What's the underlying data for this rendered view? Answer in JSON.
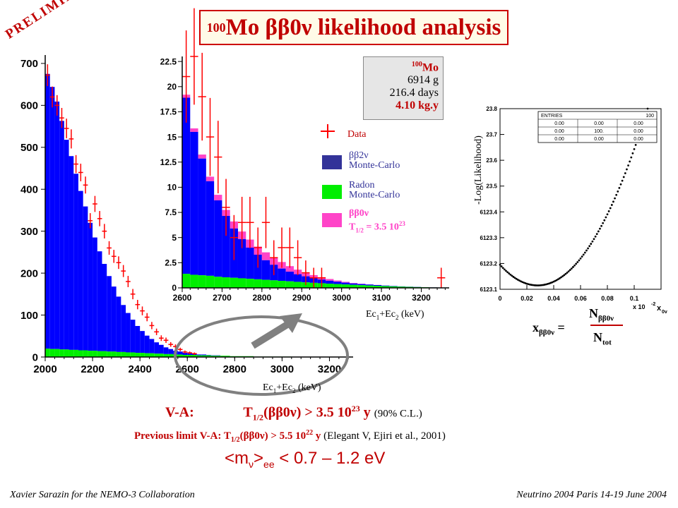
{
  "slide": {
    "title_sup": "100",
    "title_main": "Mo  ββ0ν likelihood analysis",
    "preliminary": "PRELIMINARY",
    "info": {
      "isotope_sup": "100",
      "isotope": "Mo",
      "mass": "6914 g",
      "days": "216.4 days",
      "exposure": "4.10 kg.y"
    },
    "legend": {
      "data": "Data",
      "bb2v_a": "ββ2ν",
      "bb2v_b": "Monte-Carlo",
      "radon_a": "Radon",
      "radon_b": "Monte-Carlo",
      "bb0v_a": "ββ0ν",
      "bb0v_b": "T",
      "bb0v_sub": "1/2",
      "bb0v_c": "= 3.5 10",
      "bb0v_sup": "23"
    },
    "main_xlabel_a": "Ec",
    "main_xlabel_sub1": "1",
    "main_xlabel_b": "+Ec",
    "main_xlabel_sub2": "2",
    "main_xlabel_c": " (keV)",
    "inset_xlabel": "Ec1+Ec2 (keV)",
    "likelihood_ylabel": "-Log(Likelihood)",
    "likelihood_xscale": "x 10",
    "likelihood_xscale_sup": "-2",
    "likelihood_xaxis_name": "x",
    "likelihood_xaxis_sub": "0v",
    "stats_box": {
      "header": "ENTRIES",
      "header_val": "100",
      "rows": [
        [
          "0.00",
          "0.00",
          "0.00"
        ],
        [
          "0.00",
          "100.",
          "0.00"
        ],
        [
          "0.00",
          "0.00",
          "0.00"
        ]
      ]
    },
    "eq_x": "x",
    "eq_x_sub": "ββ0ν",
    "eq_eq": " =",
    "eq_num": "N",
    "eq_num_sub": "ββ0ν",
    "eq_den": "N",
    "eq_den_sub": "tot",
    "result_label": "V-A:",
    "result_t": "T",
    "result_t_sub": "1/2",
    "result_expr": "(ββ0ν) >  3.5 10",
    "result_sup": "23",
    "result_unit": " y",
    "result_note": "(90% C.L.)",
    "prev_label": "Previous limit V-A:",
    "prev_t": "T",
    "prev_t_sub": "1/2",
    "prev_expr": "(ββ0ν) > 5.5 10",
    "prev_sup": "22",
    "prev_unit": " y",
    "prev_note": "(Elegant V, Ejiri et al., 2001)",
    "mass_a": "<m",
    "mass_sub1": "ν",
    "mass_b": ">",
    "mass_sub2": "ee",
    "mass_c": " < 0.7 – 1.2 eV",
    "footer_left": "Xavier Sarazin for the NEMO-3 Collaboration",
    "footer_right": "Neutrino 2004 Paris 14-19 June 2004"
  },
  "colors": {
    "bb2v": "#0000ff",
    "radon": "#00ee00",
    "bb0v": "#ff44c8",
    "data": "#ff0000",
    "accent": "#c00000"
  },
  "chart_data": [
    {
      "type": "bar",
      "name": "main",
      "x_tick_labels": [
        "2000",
        "2200",
        "2400",
        "2600",
        "2800",
        "3000",
        "3200"
      ],
      "y_tick_labels": [
        "0",
        "100",
        "200",
        "300",
        "400",
        "500",
        "600",
        "700"
      ],
      "xlim": [
        2000,
        3300
      ],
      "ylim": [
        0,
        720
      ],
      "bin_width": 20,
      "bb2v": [
        655,
        625,
        590,
        545,
        500,
        462,
        420,
        380,
        343,
        305,
        270,
        238,
        208,
        180,
        155,
        132,
        112,
        94,
        78,
        64,
        52,
        42,
        34,
        27,
        21,
        16,
        12,
        9,
        7,
        5,
        4,
        3,
        2,
        2,
        1,
        1,
        1,
        0,
        0,
        0,
        0,
        0,
        0,
        0,
        0,
        0,
        0,
        0,
        0,
        0,
        0,
        0,
        0,
        0,
        0,
        0,
        0,
        0,
        0,
        0,
        0,
        0,
        0,
        0,
        0
      ],
      "radon": [
        20,
        19,
        19,
        18,
        18,
        17,
        17,
        16,
        16,
        15,
        15,
        14,
        14,
        13,
        13,
        12,
        12,
        11,
        11,
        10,
        10,
        9,
        9,
        8,
        8,
        7,
        7,
        6,
        6,
        5,
        5,
        5,
        4,
        4,
        4,
        3,
        3,
        3,
        3,
        2,
        2,
        2,
        2,
        2,
        1,
        1,
        1,
        1,
        1,
        1,
        1,
        1,
        0,
        0,
        0,
        0,
        0,
        0,
        0,
        0,
        0,
        0,
        0,
        0,
        0
      ],
      "data_x": [
        2010,
        2030,
        2050,
        2070,
        2090,
        2110,
        2130,
        2150,
        2170,
        2190,
        2210,
        2230,
        2250,
        2270,
        2290,
        2310,
        2330,
        2350,
        2370,
        2390,
        2410,
        2430,
        2450,
        2470,
        2490,
        2510,
        2530,
        2550,
        2570,
        2590,
        2610,
        2630
      ],
      "data_y": [
        672,
        620,
        600,
        570,
        545,
        520,
        460,
        440,
        410,
        325,
        365,
        330,
        300,
        260,
        240,
        225,
        205,
        180,
        150,
        125,
        110,
        95,
        75,
        60,
        45,
        40,
        30,
        25,
        18,
        12,
        10,
        8
      ]
    },
    {
      "type": "bar",
      "name": "inset",
      "x_tick_labels": [
        "2600",
        "2700",
        "2800",
        "2900",
        "3000",
        "3100",
        "3200"
      ],
      "y_tick_labels": [
        "0",
        "2.5",
        "5",
        "7.5",
        "10",
        "12.5",
        "15",
        "17.5",
        "20",
        "22.5"
      ],
      "xlim": [
        2600,
        3270
      ],
      "ylim": [
        0,
        23
      ],
      "bin_width": 20,
      "bb2v": [
        17.5,
        14.2,
        11.6,
        9.4,
        7.6,
        6.1,
        4.9,
        3.9,
        3.1,
        2.45,
        1.95,
        1.55,
        1.22,
        0.96,
        0.76,
        0.6,
        0.47,
        0.37,
        0.29,
        0.23,
        0.18,
        0.14,
        0.11,
        0.09,
        0.07,
        0.05,
        0.04,
        0.03,
        0.02,
        0.02,
        0.01,
        0.01,
        0.01,
        0.0
      ],
      "radon": [
        1.4,
        1.3,
        1.25,
        1.2,
        1.1,
        1.05,
        1.0,
        0.95,
        0.9,
        0.85,
        0.8,
        0.75,
        0.7,
        0.65,
        0.6,
        0.55,
        0.5,
        0.46,
        0.42,
        0.38,
        0.34,
        0.3,
        0.27,
        0.24,
        0.21,
        0.18,
        0.15,
        0.12,
        0.1,
        0.08,
        0.06,
        0.04,
        0.02,
        0.0
      ],
      "bb0v": [
        0.3,
        0.35,
        0.4,
        0.45,
        0.55,
        0.6,
        0.7,
        0.75,
        0.8,
        0.8,
        0.78,
        0.72,
        0.65,
        0.55,
        0.45,
        0.37,
        0.3,
        0.23,
        0.17,
        0.12,
        0.08,
        0.05,
        0.03,
        0.02,
        0.01,
        0.0,
        0.0,
        0.0,
        0.0,
        0.0,
        0.0,
        0.0,
        0.0,
        0.0
      ],
      "data_x": [
        2610,
        2630,
        2650,
        2670,
        2690,
        2710,
        2730,
        2750,
        2770,
        2790,
        2810,
        2830,
        2850,
        2870,
        2890,
        2910,
        2930,
        2950,
        3250
      ],
      "data_y": [
        21,
        23,
        19,
        15,
        13,
        8,
        5,
        6.5,
        6.5,
        4,
        6.5,
        3,
        4,
        4,
        3,
        1.5,
        1,
        1,
        1
      ]
    },
    {
      "type": "scatter",
      "name": "likelihood",
      "x_tick_labels": [
        "0",
        "0.02",
        "0.04",
        "0.06",
        "0.08",
        "0.1"
      ],
      "y_tick_labels": [
        "6123.1",
        "6123.2",
        "6123.3",
        "6123.4",
        "23.5",
        "23.6",
        "23.7",
        "23.8"
      ],
      "xlim": [
        0,
        0.12
      ],
      "ylim": [
        6123.1,
        6123.8
      ],
      "curve": {
        "x_min_value": 0.028,
        "y_min_value": 6123.115,
        "points": 100
      }
    }
  ]
}
